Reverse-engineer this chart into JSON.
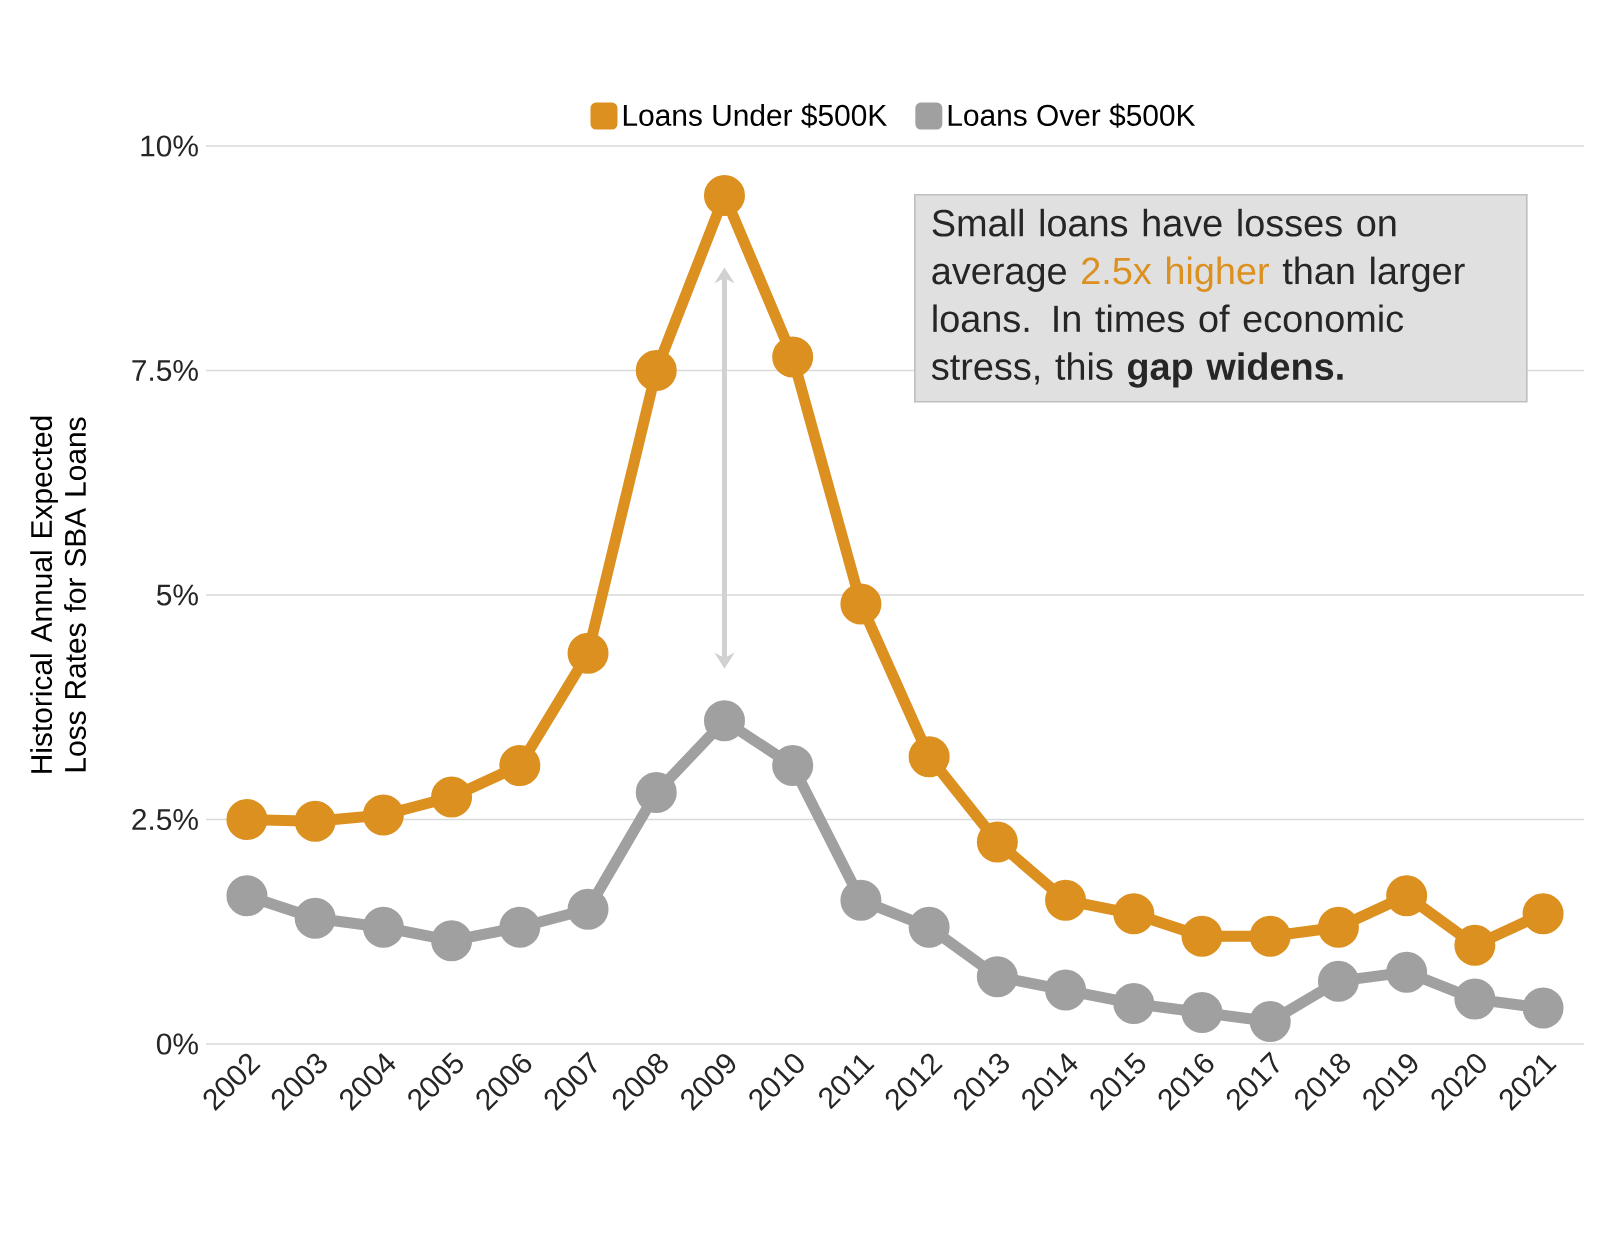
{
  "chart_data": {
    "type": "line",
    "categories": [
      "2002",
      "2003",
      "2004",
      "2005",
      "2006",
      "2007",
      "2008",
      "2009",
      "2010",
      "2011",
      "2012",
      "2013",
      "2014",
      "2015",
      "2016",
      "2017",
      "2018",
      "2019",
      "2020",
      "2021"
    ],
    "series": [
      {
        "name": "Loans Under $500K",
        "color": "#dc901f",
        "values": [
          2.5,
          2.48,
          2.55,
          2.75,
          3.1,
          4.35,
          7.5,
          9.45,
          7.65,
          4.9,
          3.2,
          2.25,
          1.6,
          1.45,
          1.2,
          1.2,
          1.3,
          1.65,
          1.1,
          1.45
        ]
      },
      {
        "name": "Loans Over $500K",
        "color": "#a0a0a0",
        "values": [
          1.65,
          1.4,
          1.3,
          1.15,
          1.3,
          1.5,
          2.8,
          3.6,
          3.1,
          1.6,
          1.3,
          0.75,
          0.6,
          0.45,
          0.35,
          0.25,
          0.7,
          0.8,
          0.5,
          0.4
        ]
      }
    ],
    "ylabel": "Historical Annual Expected Loss Rates for SBA Loans",
    "ylim": [
      0,
      10
    ],
    "yticks": [
      {
        "value": 0,
        "label": "0%"
      },
      {
        "value": 2.5,
        "label": "2.5%"
      },
      {
        "value": 5,
        "label": "5%"
      },
      {
        "value": 7.5,
        "label": "7.5%"
      },
      {
        "value": 10,
        "label": "10%"
      }
    ],
    "annotations": [
      "Small loans have losses on average",
      "2.5x higher",
      "than larger loans. In times of economic stress, this **gap widens.**"
    ],
    "grid": "y",
    "legend": "top",
    "marker": "circle",
    "line_style": "solid"
  }
}
